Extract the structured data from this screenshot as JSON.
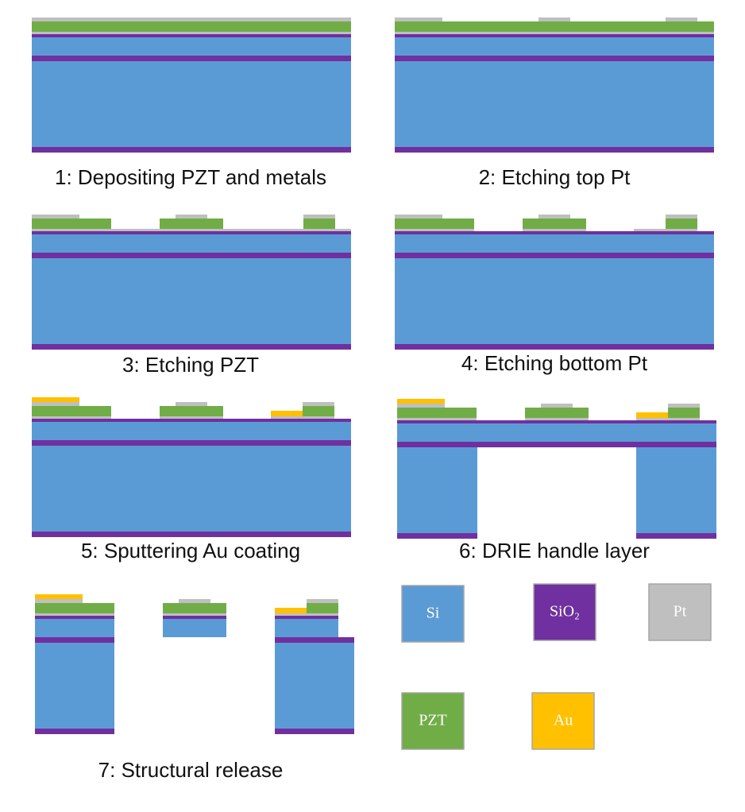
{
  "steps": [
    "1: Depositing PZT and metals",
    "2: Etching top Pt",
    "3: Etching PZT",
    "4: Etching bottom Pt",
    "5: Sputtering Au coating",
    "6: DRIE handle layer",
    "7: Structural release"
  ],
  "legend": [
    "Si",
    "SiO₂",
    "Pt",
    "PZT",
    "Au"
  ]
}
